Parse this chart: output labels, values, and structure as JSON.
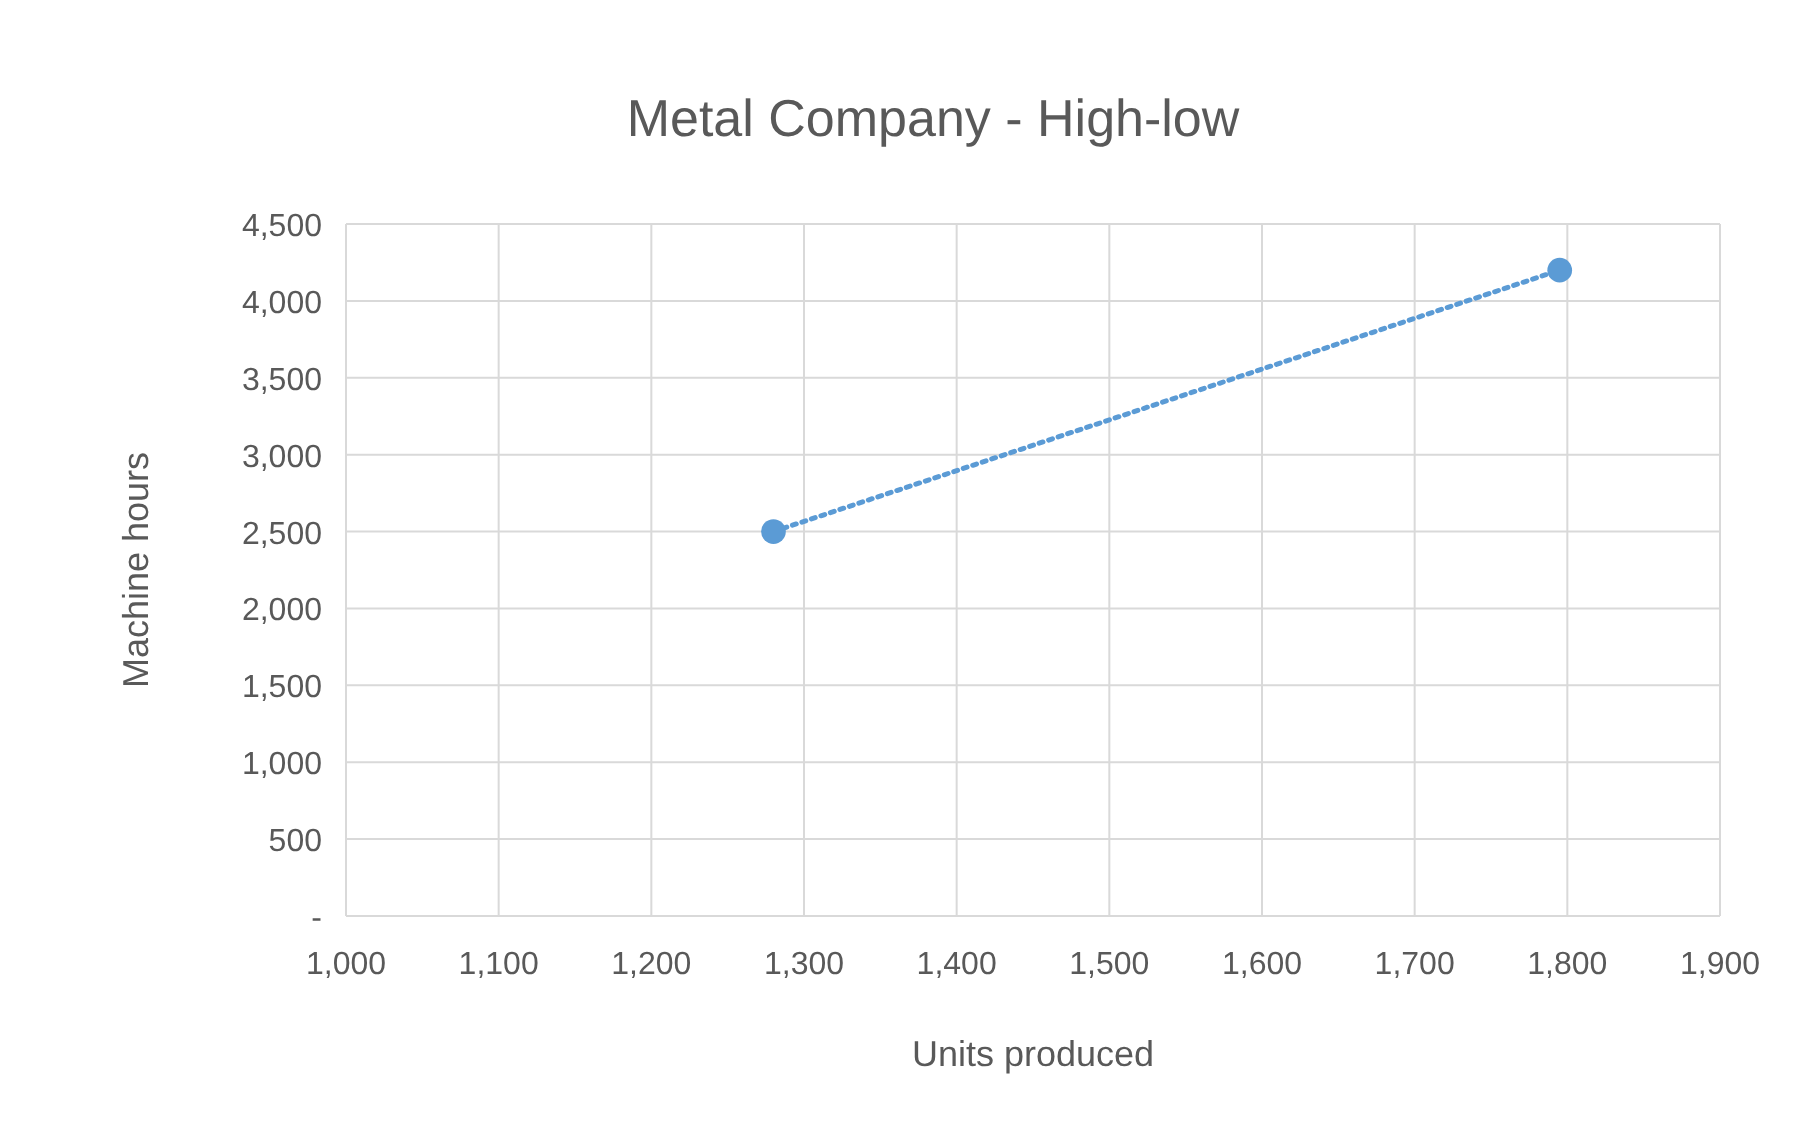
{
  "chart_data": {
    "type": "line",
    "title": "Metal Company - High-low",
    "xlabel": "Units produced",
    "ylabel": "Machine hours",
    "xlim": [
      1000,
      1900
    ],
    "xticks": [
      {
        "value": 1000,
        "label": "1,000"
      },
      {
        "value": 1100,
        "label": "1,100"
      },
      {
        "value": 1200,
        "label": "1,200"
      },
      {
        "value": 1300,
        "label": "1,300"
      },
      {
        "value": 1400,
        "label": "1,400"
      },
      {
        "value": 1500,
        "label": "1,500"
      },
      {
        "value": 1600,
        "label": "1,600"
      },
      {
        "value": 1700,
        "label": "1,700"
      },
      {
        "value": 1800,
        "label": "1,800"
      },
      {
        "value": 1900,
        "label": "1,900"
      }
    ],
    "ylim": [
      0,
      4500
    ],
    "yticks": [
      {
        "value": 0,
        "label": "-"
      },
      {
        "value": 500,
        "label": "500"
      },
      {
        "value": 1000,
        "label": "1,000"
      },
      {
        "value": 1500,
        "label": "1,500"
      },
      {
        "value": 2000,
        "label": "2,000"
      },
      {
        "value": 2500,
        "label": "2,500"
      },
      {
        "value": 3000,
        "label": "3,000"
      },
      {
        "value": 3500,
        "label": "3,500"
      },
      {
        "value": 4000,
        "label": "4,000"
      },
      {
        "value": 4500,
        "label": "4,500"
      }
    ],
    "grid": true,
    "series": [
      {
        "color": "#5b9bd5",
        "x": [
          1280,
          1795
        ],
        "values": [
          2500,
          4200
        ],
        "line_style": "dotted",
        "marker": "circle"
      }
    ]
  }
}
